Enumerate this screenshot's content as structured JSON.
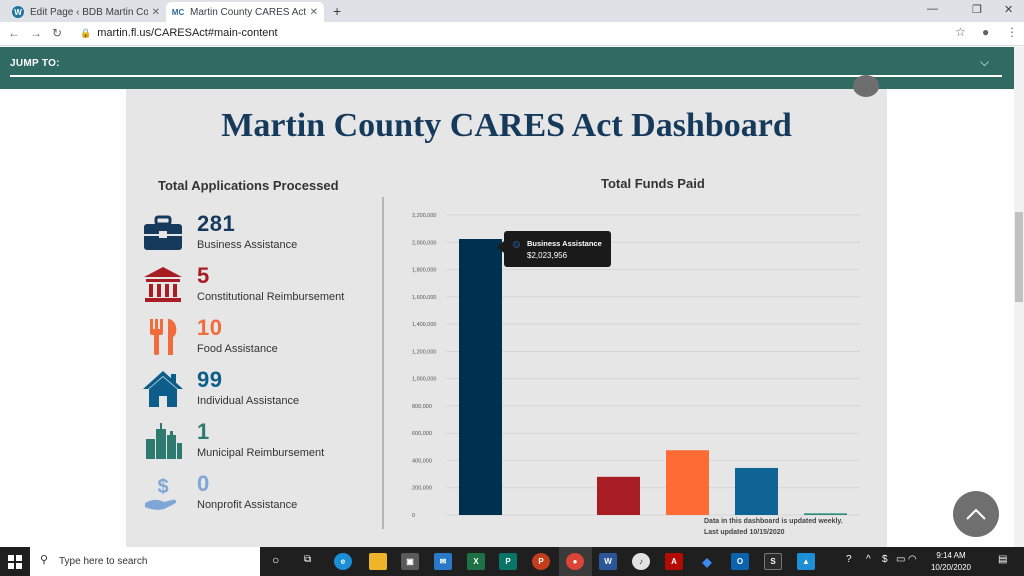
{
  "browser": {
    "tabs": [
      {
        "title": "Edit Page ‹ BDB Martin County —",
        "favicon": "wordpress-icon",
        "active": false
      },
      {
        "title": "Martin County CARES Act Assista",
        "favicon": "mc-icon",
        "favicon_text": "MC",
        "active": true
      }
    ],
    "url": "martin.fl.us/CARESAct#main-content"
  },
  "jump": {
    "label": "JUMP TO:"
  },
  "dashboard": {
    "title": "Martin County CARES Act Dashboard",
    "left_title": "Total Applications Processed",
    "right_title": "Total Funds Paid",
    "stats": [
      {
        "value": "281",
        "label": "Business Assistance",
        "color": "#163a5c",
        "icon": "briefcase-icon"
      },
      {
        "value": "5",
        "label": "Constitutional Reimbursement",
        "color": "#a81c24",
        "icon": "courthouse-icon"
      },
      {
        "value": "10",
        "label": "Food Assistance",
        "color": "#f26b3a",
        "icon": "fork-knife-icon"
      },
      {
        "value": "99",
        "label": "Individual Assistance",
        "color": "#0d5d8a",
        "icon": "house-icon"
      },
      {
        "value": "1",
        "label": "Municipal Reimbursement",
        "color": "#2e7a70",
        "icon": "city-icon"
      },
      {
        "value": "0",
        "label": "Nonprofit Assistance",
        "color": "#7ea6d6",
        "icon": "hand-dollar-icon"
      }
    ],
    "tooltip": {
      "series": "Business Assistance",
      "value": "$2,023,956"
    },
    "note_line1": "Data in this dashboard is updated weekly.",
    "note_line2": "Last updated 10/15/2020"
  },
  "chart_data": {
    "type": "bar",
    "title": "Total Funds Paid",
    "categories": [
      "Business Assistance",
      "Constitutional Reimbursement",
      "Food Assistance",
      "Individual Assistance",
      "Municipal Reimbursement",
      "Nonprofit Assistance"
    ],
    "values": [
      2023956,
      0,
      280000,
      475000,
      345000,
      12000
    ],
    "colors": [
      "#00304f",
      "#a81c24",
      "#a81c24",
      "#ff6b35",
      "#0f6496",
      "#2e8b7a"
    ],
    "ylim": [
      0,
      2200000
    ],
    "yticks": [
      "0",
      "200,000",
      "400,000",
      "600,000",
      "800,000",
      "1,000,000",
      "1,200,000",
      "1,400,000",
      "1,600,000",
      "1,800,000",
      "2,000,000",
      "2,200,000"
    ],
    "grid": true
  },
  "taskbar": {
    "search_placeholder": "Type here to search",
    "time": "9:14 AM",
    "date": "10/20/2020"
  }
}
